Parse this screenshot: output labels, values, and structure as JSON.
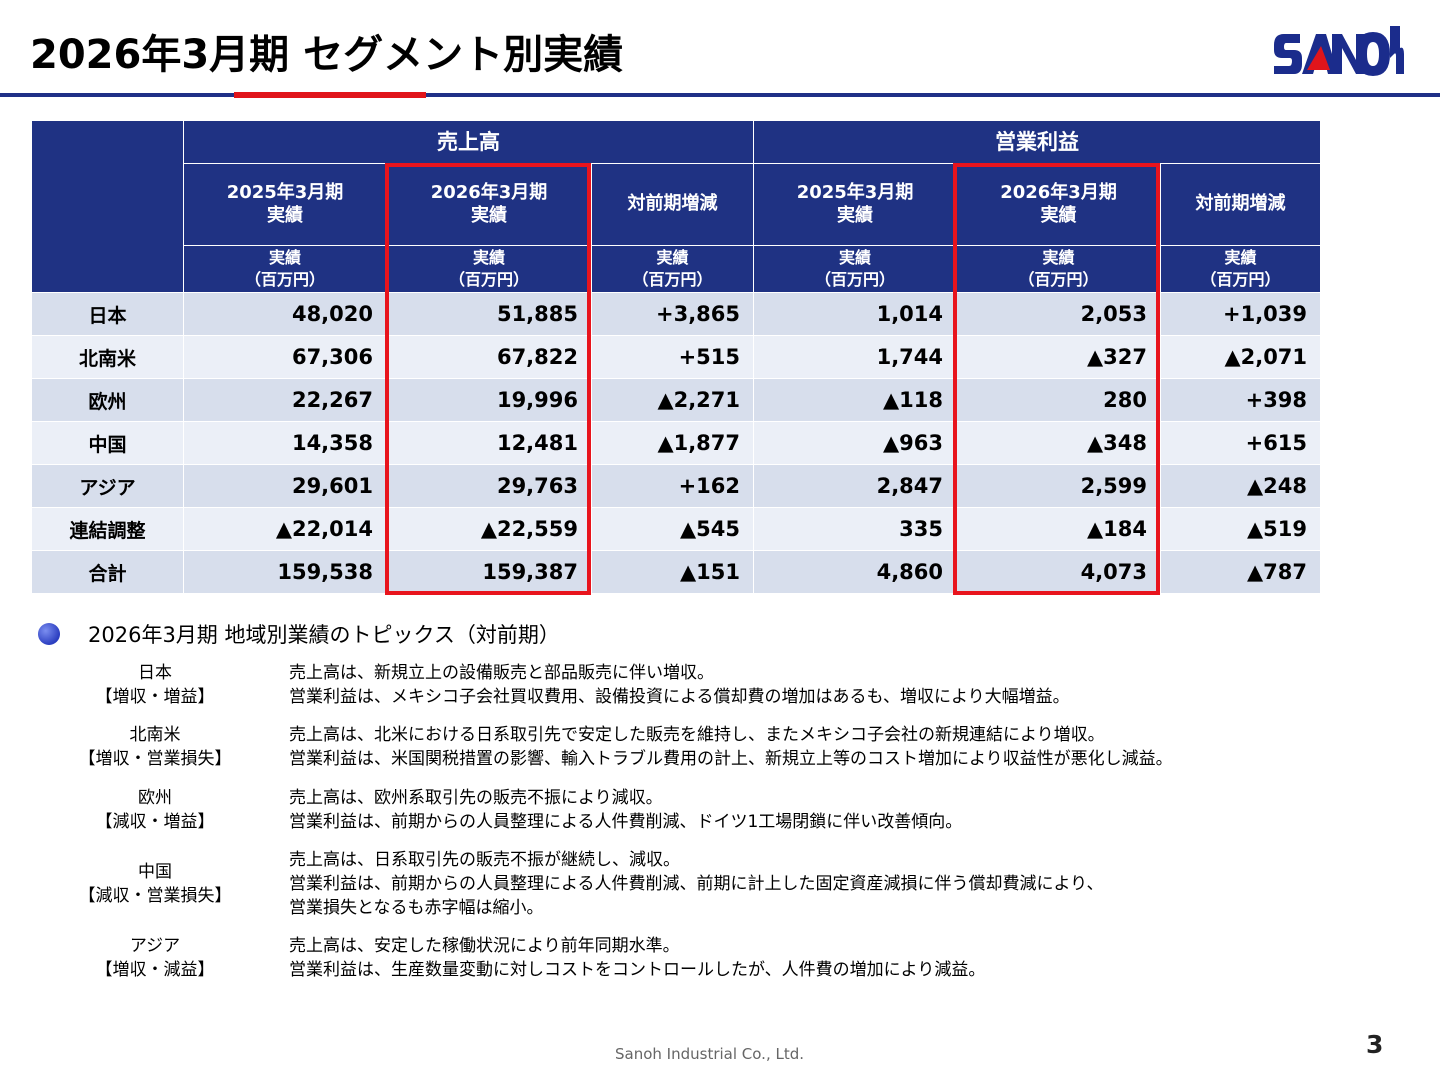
{
  "title": "2026年3月期 セグメント別実績",
  "logo_text": "SANOh",
  "colors": {
    "header_bg": "#1f3283",
    "highlight": "#e8141d",
    "accent_rule": "#1f3087"
  },
  "table": {
    "group_sales": "売上高",
    "group_op": "営業利益",
    "col_prev": "2025年3月期\n実績",
    "col_curr": "2026年3月期\n実績",
    "col_diff": "対前期増減",
    "unit": "実績\n（百万円）",
    "rows": [
      {
        "label": "日本",
        "v": [
          "48,020",
          "51,885",
          "+3,865",
          "1,014",
          "2,053",
          "+1,039"
        ]
      },
      {
        "label": "北南米",
        "v": [
          "67,306",
          "67,822",
          "+515",
          "1,744",
          "▲327",
          "▲2,071"
        ]
      },
      {
        "label": "欧州",
        "v": [
          "22,267",
          "19,996",
          "▲2,271",
          "▲118",
          "280",
          "+398"
        ]
      },
      {
        "label": "中国",
        "v": [
          "14,358",
          "12,481",
          "▲1,877",
          "▲963",
          "▲348",
          "+615"
        ]
      },
      {
        "label": "アジア",
        "v": [
          "29,601",
          "29,763",
          "+162",
          "2,847",
          "2,599",
          "▲248"
        ]
      },
      {
        "label": "連結調整",
        "v": [
          "▲22,014",
          "▲22,559",
          "▲545",
          "335",
          "▲184",
          "▲519"
        ]
      },
      {
        "label": "合計",
        "v": [
          "159,538",
          "159,387",
          "▲151",
          "4,860",
          "4,073",
          "▲787"
        ]
      }
    ]
  },
  "topics_title": "2026年3月期 地域別業績のトピックス（対前期）",
  "topics": [
    {
      "region": "日本",
      "tag": "【増収・増益】",
      "lines": [
        "売上高は、新規立上の設備販売と部品販売に伴い増収。",
        "営業利益は、メキシコ子会社買収費用、設備投資による償却費の増加はあるも、増収により大幅増益。"
      ]
    },
    {
      "region": "北南米",
      "tag": "【増収・営業損失】",
      "lines": [
        "売上高は、北米における日系取引先で安定した販売を維持し、またメキシコ子会社の新規連結により増収。",
        "営業利益は、米国関税措置の影響、輸入トラブル費用の計上、新規立上等のコスト増加により収益性が悪化し減益。"
      ]
    },
    {
      "region": "欧州",
      "tag": "【減収・増益】",
      "lines": [
        "売上高は、欧州系取引先の販売不振により減収。",
        "営業利益は、前期からの人員整理による人件費削減、ドイツ1工場閉鎖に伴い改善傾向。"
      ]
    },
    {
      "region": "中国",
      "tag": "【減収・営業損失】",
      "lines": [
        "売上高は、日系取引先の販売不振が継続し、減収。",
        "営業利益は、前期からの人員整理による人件費削減、前期に計上した固定資産減損に伴う償却費減により、",
        "営業損失となるも赤字幅は縮小。"
      ]
    },
    {
      "region": "アジア",
      "tag": "【増収・減益】",
      "lines": [
        "売上高は、安定した稼働状況により前年同期水準。",
        "営業利益は、生産数量変動に対しコストをコントロールしたが、人件費の増加により減益。"
      ]
    }
  ],
  "footer": "Sanoh Industrial Co., Ltd.",
  "page_number": "3"
}
